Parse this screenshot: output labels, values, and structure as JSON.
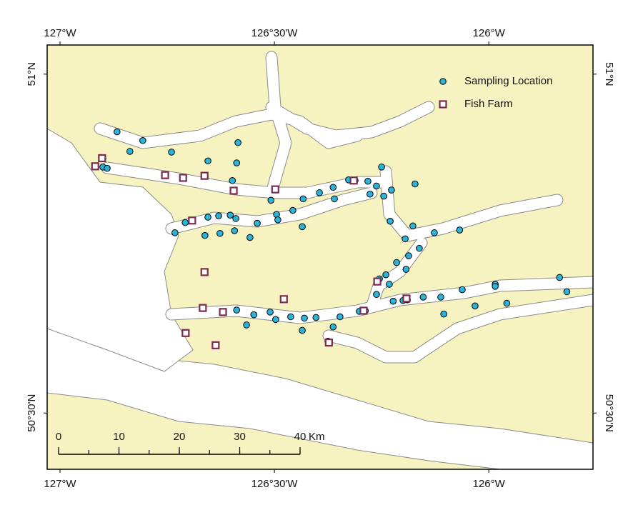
{
  "chart_data": {
    "type": "point-map",
    "xlim": [
      -127.03,
      -125.757
    ],
    "ylim": [
      50.417,
      51.043
    ],
    "xticks": [
      {
        "value": -127,
        "label": "127°W"
      },
      {
        "value": -126.5,
        "label": "126°30'W"
      },
      {
        "value": -126,
        "label": "126°W"
      }
    ],
    "yticks": [
      {
        "value": 51,
        "label": "51°N"
      },
      {
        "value": 50.5,
        "label": "50°30'N"
      }
    ],
    "legend": "upper right",
    "scale_bar": {
      "ticks": [
        0,
        10,
        20,
        30,
        40
      ],
      "unit": "Km"
    },
    "series": [
      {
        "name": "Sampling Location",
        "marker": "circle",
        "color": "#2bb3d9",
        "lon": [
          -126.867,
          -126.807,
          -126.837,
          -126.74,
          -126.9,
          -126.9,
          -126.89,
          -126.655,
          -126.585,
          -126.588,
          -126.598,
          -126.508,
          -126.495,
          -126.492,
          -126.457,
          -126.433,
          -126.395,
          -126.363,
          -126.36,
          -126.327,
          -126.312,
          -126.282,
          -126.25,
          -126.262,
          -126.245,
          -126.227,
          -126.277,
          -126.172,
          -126.655,
          -126.63,
          -126.603,
          -126.59,
          -126.54,
          -126.435,
          -126.708,
          -126.732,
          -126.662,
          -126.627,
          -126.593,
          -126.557,
          -126.23,
          -126.195,
          -126.177,
          -126.127,
          -126.068,
          -126.162,
          -126.187,
          -126.215,
          -126.193,
          -126.24,
          -126.255,
          -126.232,
          -126.262,
          -126.223,
          -126.2,
          -126.19,
          -126.153,
          -126.112,
          -126.062,
          -125.985,
          -125.985,
          -125.835,
          -125.818,
          -125.958,
          -126.032,
          -126.105,
          -126.588,
          -126.548,
          -126.51,
          -126.497,
          -126.462,
          -126.43,
          -126.403,
          -126.347,
          -126.302,
          -126.288,
          -126.363,
          -126.435,
          -126.565,
          -126.375
        ],
        "lat": [
          50.915,
          50.902,
          50.886,
          50.885,
          50.876,
          50.863,
          50.861,
          50.872,
          50.899,
          50.869,
          50.843,
          50.814,
          50.793,
          50.785,
          50.799,
          50.816,
          50.825,
          50.833,
          50.816,
          50.844,
          50.843,
          50.842,
          50.863,
          50.835,
          50.82,
          50.829,
          50.823,
          50.838,
          50.789,
          50.791,
          50.792,
          50.787,
          50.78,
          50.775,
          50.781,
          50.766,
          50.762,
          50.765,
          50.769,
          50.759,
          50.783,
          50.757,
          50.776,
          50.766,
          50.77,
          50.743,
          50.732,
          50.722,
          50.712,
          50.704,
          50.698,
          50.69,
          50.675,
          50.665,
          50.666,
          50.667,
          50.671,
          50.671,
          50.682,
          50.69,
          50.687,
          50.7,
          50.679,
          50.662,
          50.658,
          50.646,
          50.652,
          50.645,
          50.649,
          50.638,
          50.642,
          50.64,
          50.641,
          50.642,
          50.65,
          50.651,
          50.627,
          50.622,
          50.63,
          50.606
        ]
      },
      {
        "name": "Fish Farm",
        "marker": "square",
        "color": "#7b2a4f",
        "lon": [
          -126.902,
          -126.918,
          -126.755,
          -126.713,
          -126.663,
          -126.498,
          -126.595,
          -126.315,
          -126.692,
          -126.663,
          -126.26,
          -126.192,
          -126.478,
          -126.667,
          -126.62,
          -126.707,
          -126.637,
          -126.373,
          -126.292
        ],
        "lat": [
          50.876,
          50.864,
          50.851,
          50.847,
          50.85,
          50.83,
          50.828,
          50.843,
          50.784,
          50.708,
          50.694,
          50.669,
          50.668,
          50.655,
          50.649,
          50.618,
          50.6,
          50.604,
          50.651
        ]
      }
    ]
  }
}
